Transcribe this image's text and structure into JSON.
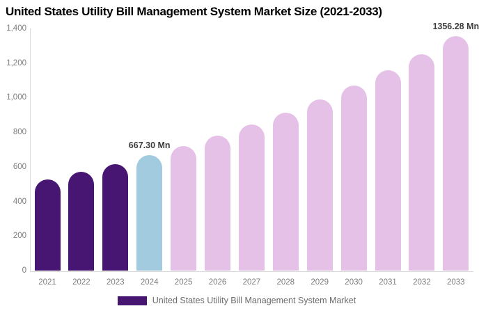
{
  "title": "United States Utility Bill Management System Market Size (2021-2033)",
  "chart_data": {
    "type": "bar",
    "title": "United States Utility Bill Management System Market Size (2021-2033)",
    "unit": "Mn",
    "categories": [
      "2021",
      "2022",
      "2023",
      "2024",
      "2025",
      "2026",
      "2027",
      "2028",
      "2029",
      "2030",
      "2031",
      "2032",
      "2033"
    ],
    "values": [
      525,
      570,
      615,
      667.3,
      722,
      781,
      845,
      913,
      988,
      1069,
      1157,
      1252,
      1356.28
    ],
    "point_colors": [
      "#471572",
      "#471572",
      "#471572",
      "#a3cbdf",
      "#e5c0e7",
      "#e5c0e7",
      "#e5c0e7",
      "#e5c0e7",
      "#e5c0e7",
      "#e5c0e7",
      "#e5c0e7",
      "#e5c0e7",
      "#e5c0e7"
    ],
    "annotations": [
      {
        "category": "2024",
        "index": 3,
        "text": "667.30 Mn"
      },
      {
        "category": "2033",
        "index": 12,
        "text": "1356.28 Mn"
      }
    ],
    "ylim": [
      0,
      1400
    ],
    "yticks": [
      {
        "value": 0,
        "label": "0"
      },
      {
        "value": 200,
        "label": "200"
      },
      {
        "value": 400,
        "label": "400"
      },
      {
        "value": 600,
        "label": "600"
      },
      {
        "value": 800,
        "label": "800"
      },
      {
        "value": 1000,
        "label": "1,000"
      },
      {
        "value": 1200,
        "label": "1,200"
      },
      {
        "value": 1400,
        "label": "1,400"
      }
    ],
    "grid": false,
    "legend_position": "bottom",
    "series_name": "United States Utility Bill Management System Market"
  },
  "legend": {
    "label": "United States Utility Bill Management System Market",
    "swatch_color": "#471572"
  },
  "colors": {
    "historical_bar": "#471572",
    "highlight_bar": "#a3cbdf",
    "forecast_bar": "#e5c0e7",
    "axis_line": "#d9d9d9",
    "tick_label": "#7d7d7d",
    "value_label": "#3d3d3d",
    "legend_text": "#6b6b6b",
    "title_text": "#000000"
  }
}
